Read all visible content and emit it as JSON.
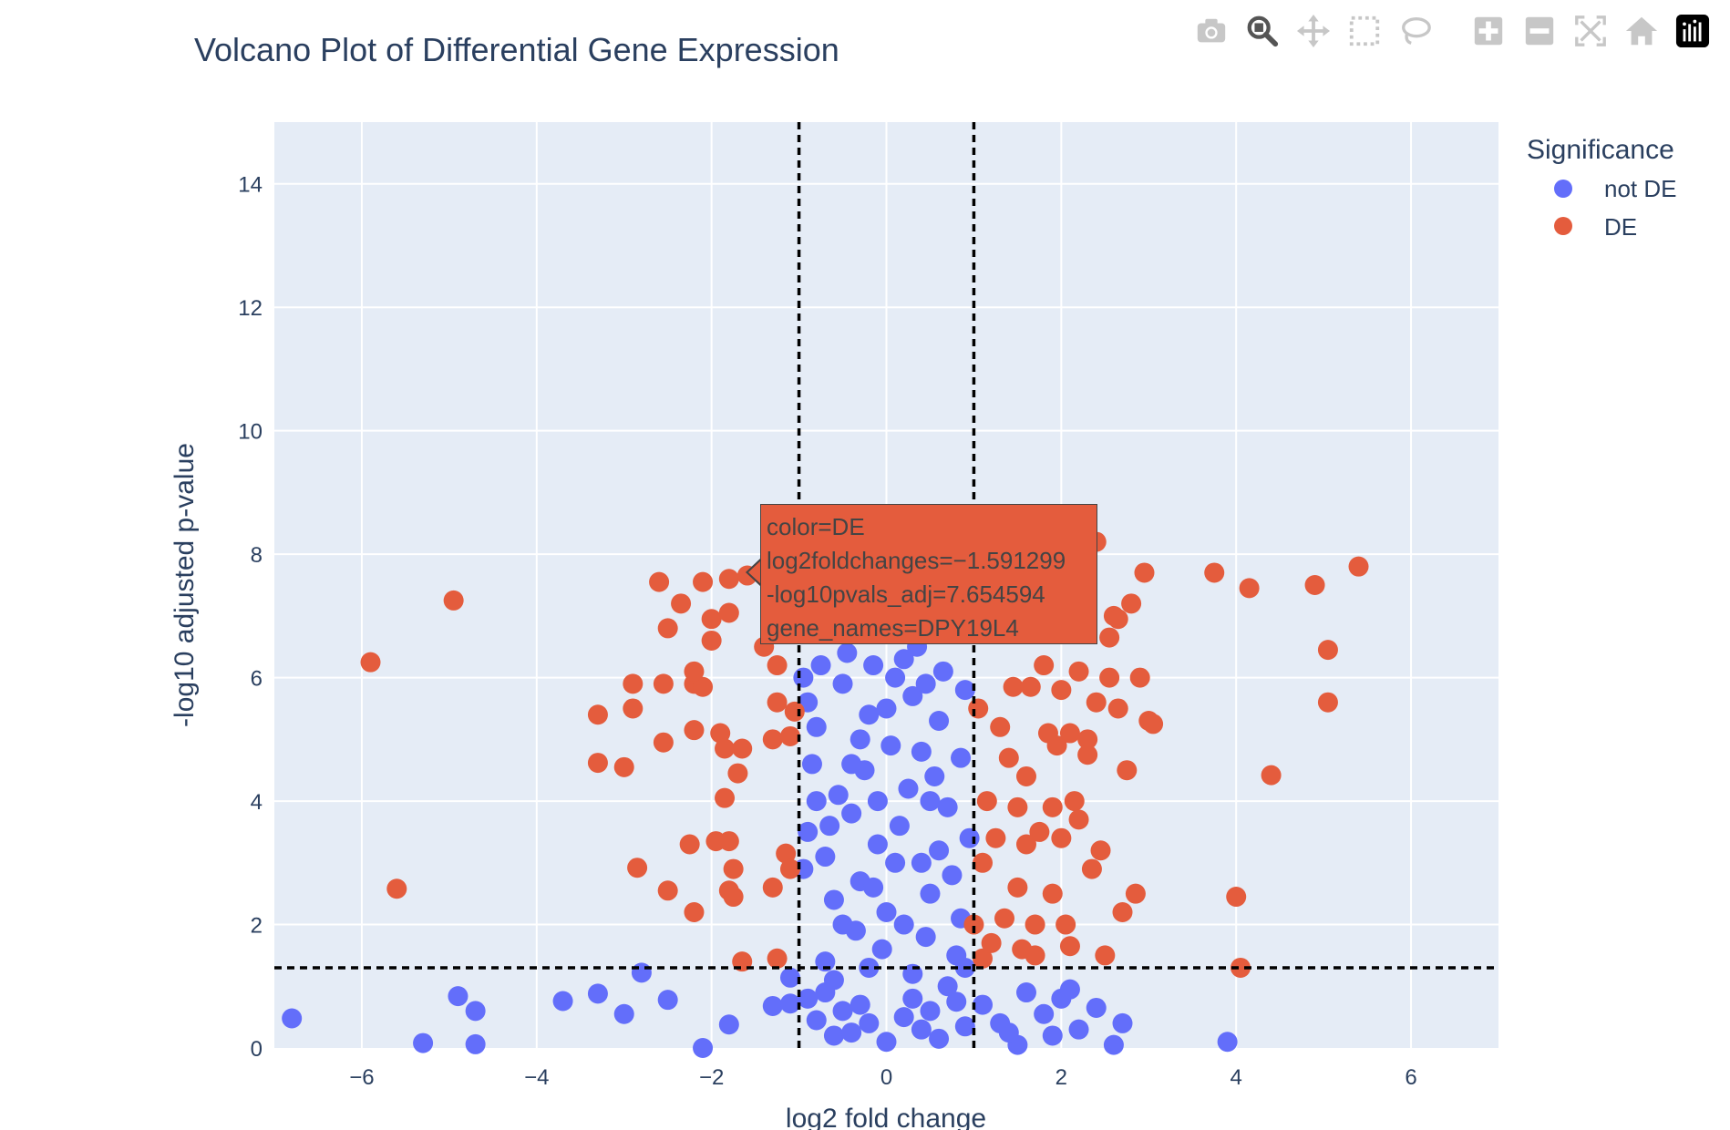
{
  "modebar": {
    "icons": [
      "camera-icon",
      "zoom-icon",
      "pan-icon",
      "box-select-icon",
      "lasso-select-icon",
      "zoom-in-icon",
      "zoom-out-icon",
      "autoscale-icon",
      "reset-axes-icon",
      "plotly-logo-icon"
    ]
  },
  "tooltip": {
    "line1": "color=DE",
    "line2": "log2foldchanges=−1.591299",
    "line3": "-log10pvals_adj=7.654594",
    "line4": "gene_names=DPY19L4"
  },
  "colors": {
    "not_de": "#636efa",
    "de": "#e45c3d",
    "plot_bg": "#e5ecf6",
    "grid": "#ffffff"
  },
  "chart_data": {
    "type": "scatter",
    "title": "Volcano Plot of Differential Gene Expression",
    "xlabel": "log2 fold change",
    "ylabel": "-log10 adjusted p-value",
    "xlim": [
      -7,
      7
    ],
    "ylim": [
      0,
      15
    ],
    "x_ticks": [
      -6,
      -4,
      -2,
      0,
      2,
      4,
      6
    ],
    "x_tick_labels": [
      "−6",
      "−4",
      "−2",
      "0",
      "2",
      "4",
      "6"
    ],
    "y_ticks": [
      0,
      2,
      4,
      6,
      8,
      10,
      12,
      14
    ],
    "y_tick_labels": [
      "0",
      "2",
      "4",
      "6",
      "8",
      "10",
      "12",
      "14"
    ],
    "grid": true,
    "legend": {
      "title": "Significance",
      "placement": "top-right"
    },
    "threshold_lines": {
      "x": [
        -1,
        1
      ],
      "y": 1.3
    },
    "series": [
      {
        "name": "not DE",
        "color": "#636efa",
        "points": [
          [
            -6.8,
            0.48
          ],
          [
            -5.3,
            0.08
          ],
          [
            -4.9,
            0.84
          ],
          [
            -4.7,
            0.6
          ],
          [
            -4.7,
            0.06
          ],
          [
            -3.7,
            0.76
          ],
          [
            -3.3,
            0.88
          ],
          [
            -3.0,
            0.55
          ],
          [
            -2.8,
            1.22
          ],
          [
            -2.5,
            0.78
          ],
          [
            -2.1,
            0.0
          ],
          [
            -1.8,
            0.38
          ],
          [
            -1.3,
            0.68
          ],
          [
            -1.1,
            1.14
          ],
          [
            -1.1,
            0.72
          ],
          [
            -0.9,
            0.8
          ],
          [
            -0.8,
            0.45
          ],
          [
            -0.7,
            0.9
          ],
          [
            -0.6,
            0.2
          ],
          [
            -0.5,
            0.6
          ],
          [
            -0.4,
            0.25
          ],
          [
            -0.3,
            0.7
          ],
          [
            -0.2,
            0.4
          ],
          [
            0.0,
            0.1
          ],
          [
            0.2,
            0.5
          ],
          [
            0.3,
            0.8
          ],
          [
            0.4,
            0.3
          ],
          [
            0.5,
            0.6
          ],
          [
            0.6,
            0.15
          ],
          [
            0.8,
            0.75
          ],
          [
            0.9,
            0.35
          ],
          [
            1.1,
            0.7
          ],
          [
            1.3,
            0.4
          ],
          [
            1.5,
            0.05
          ],
          [
            1.6,
            0.9
          ],
          [
            1.8,
            0.55
          ],
          [
            2.0,
            0.8
          ],
          [
            2.2,
            0.3
          ],
          [
            2.4,
            0.65
          ],
          [
            2.6,
            0.05
          ],
          [
            2.7,
            0.4
          ],
          [
            3.9,
            0.1
          ],
          [
            1.4,
            0.25
          ],
          [
            1.9,
            0.2
          ],
          [
            2.1,
            0.95
          ],
          [
            -0.95,
            2.9
          ],
          [
            -0.9,
            3.5
          ],
          [
            -0.85,
            4.6
          ],
          [
            -0.9,
            5.6
          ],
          [
            -0.95,
            6.0
          ],
          [
            -0.8,
            5.2
          ],
          [
            -0.7,
            3.1
          ],
          [
            -0.6,
            2.4
          ],
          [
            -0.55,
            4.1
          ],
          [
            -0.5,
            5.9
          ],
          [
            -0.45,
            6.4
          ],
          [
            -0.4,
            3.8
          ],
          [
            -0.35,
            1.9
          ],
          [
            -0.3,
            2.7
          ],
          [
            -0.25,
            4.5
          ],
          [
            -0.2,
            5.4
          ],
          [
            -0.15,
            6.2
          ],
          [
            -0.1,
            3.3
          ],
          [
            -0.05,
            1.6
          ],
          [
            0.0,
            2.2
          ],
          [
            0.05,
            4.9
          ],
          [
            0.1,
            6.0
          ],
          [
            0.15,
            3.6
          ],
          [
            0.2,
            2.0
          ],
          [
            0.25,
            4.2
          ],
          [
            0.3,
            5.7
          ],
          [
            0.35,
            6.5
          ],
          [
            0.4,
            3.0
          ],
          [
            0.45,
            1.8
          ],
          [
            0.5,
            2.5
          ],
          [
            0.55,
            4.4
          ],
          [
            0.6,
            5.3
          ],
          [
            0.65,
            6.1
          ],
          [
            0.7,
            3.9
          ],
          [
            0.75,
            2.8
          ],
          [
            0.8,
            1.5
          ],
          [
            0.85,
            4.7
          ],
          [
            0.9,
            5.8
          ],
          [
            0.95,
            3.4
          ],
          [
            -0.7,
            1.4
          ],
          [
            -0.6,
            1.1
          ],
          [
            -0.2,
            1.3
          ],
          [
            0.3,
            1.2
          ],
          [
            0.7,
            1.0
          ],
          [
            0.9,
            1.3
          ],
          [
            -0.8,
            4.0
          ],
          [
            -0.5,
            2.0
          ],
          [
            -0.1,
            4.0
          ],
          [
            0.4,
            4.8
          ],
          [
            0.6,
            3.2
          ],
          [
            -0.3,
            5.0
          ],
          [
            0.1,
            3.0
          ],
          [
            0.2,
            6.3
          ],
          [
            -0.65,
            3.6
          ],
          [
            0.5,
            4.0
          ],
          [
            -0.4,
            4.6
          ],
          [
            0.85,
            2.1
          ],
          [
            -0.15,
            2.6
          ],
          [
            0.0,
            5.5
          ],
          [
            0.45,
            5.9
          ],
          [
            -0.75,
            6.2
          ]
        ]
      },
      {
        "name": "DE",
        "color": "#e45c3d",
        "points": [
          [
            -5.9,
            6.25
          ],
          [
            -5.6,
            2.58
          ],
          [
            -4.95,
            7.25
          ],
          [
            -3.3,
            5.4
          ],
          [
            -3.3,
            4.62
          ],
          [
            -3.0,
            4.55
          ],
          [
            -2.9,
            5.9
          ],
          [
            -2.9,
            5.5
          ],
          [
            -2.85,
            2.92
          ],
          [
            -2.6,
            7.55
          ],
          [
            -2.55,
            5.9
          ],
          [
            -2.5,
            6.8
          ],
          [
            -2.55,
            4.95
          ],
          [
            -2.5,
            2.55
          ],
          [
            -2.25,
            3.3
          ],
          [
            -2.2,
            2.2
          ],
          [
            -2.2,
            5.9
          ],
          [
            -2.2,
            5.15
          ],
          [
            -2.1,
            7.55
          ],
          [
            -2.1,
            5.85
          ],
          [
            -2.0,
            6.95
          ],
          [
            -2.0,
            6.6
          ],
          [
            -1.95,
            3.35
          ],
          [
            -1.9,
            5.1
          ],
          [
            -1.85,
            4.85
          ],
          [
            -1.85,
            4.05
          ],
          [
            -1.8,
            7.6
          ],
          [
            -1.8,
            7.05
          ],
          [
            -1.8,
            3.35
          ],
          [
            -1.8,
            2.55
          ],
          [
            -1.75,
            2.9
          ],
          [
            -1.75,
            2.45
          ],
          [
            -1.7,
            4.45
          ],
          [
            -1.65,
            4.85
          ],
          [
            -1.65,
            1.4
          ],
          [
            -1.591299,
            7.654594
          ],
          [
            -1.3,
            5.0
          ],
          [
            -1.25,
            6.2
          ],
          [
            -1.25,
            5.6
          ],
          [
            -1.3,
            2.6
          ],
          [
            -1.25,
            1.45
          ],
          [
            -1.15,
            3.15
          ],
          [
            -1.1,
            5.05
          ],
          [
            -1.1,
            2.9
          ],
          [
            -1.05,
            5.45
          ],
          [
            -2.35,
            7.2
          ],
          [
            -2.2,
            6.1
          ],
          [
            -1.4,
            6.5
          ],
          [
            1.0,
            2.0
          ],
          [
            1.05,
            5.5
          ],
          [
            1.1,
            3.0
          ],
          [
            1.1,
            1.45
          ],
          [
            1.15,
            4.0
          ],
          [
            1.2,
            1.7
          ],
          [
            1.25,
            3.4
          ],
          [
            1.3,
            5.2
          ],
          [
            1.35,
            2.1
          ],
          [
            1.4,
            4.7
          ],
          [
            1.45,
            5.85
          ],
          [
            1.5,
            3.9
          ],
          [
            1.5,
            2.6
          ],
          [
            1.55,
            1.6
          ],
          [
            1.6,
            4.4
          ],
          [
            1.6,
            3.3
          ],
          [
            1.65,
            5.85
          ],
          [
            1.7,
            2.0
          ],
          [
            1.7,
            1.5
          ],
          [
            1.75,
            3.5
          ],
          [
            1.8,
            6.2
          ],
          [
            1.85,
            5.1
          ],
          [
            1.9,
            2.5
          ],
          [
            1.9,
            3.9
          ],
          [
            1.95,
            4.9
          ],
          [
            2.0,
            5.8
          ],
          [
            2.0,
            3.4
          ],
          [
            2.05,
            2.0
          ],
          [
            2.1,
            5.1
          ],
          [
            2.1,
            1.65
          ],
          [
            2.15,
            4.0
          ],
          [
            2.2,
            6.1
          ],
          [
            2.2,
            3.7
          ],
          [
            2.3,
            5.0
          ],
          [
            2.35,
            2.9
          ],
          [
            2.4,
            5.6
          ],
          [
            2.45,
            3.2
          ],
          [
            2.5,
            1.5
          ],
          [
            2.55,
            6.0
          ],
          [
            2.6,
            7.0
          ],
          [
            2.65,
            5.5
          ],
          [
            2.7,
            2.2
          ],
          [
            2.75,
            4.5
          ],
          [
            2.8,
            7.2
          ],
          [
            2.85,
            2.5
          ],
          [
            2.9,
            6.0
          ],
          [
            2.95,
            7.7
          ],
          [
            3.0,
            5.3
          ],
          [
            3.05,
            5.25
          ],
          [
            3.75,
            7.7
          ],
          [
            4.0,
            2.45
          ],
          [
            4.05,
            1.3
          ],
          [
            4.15,
            7.45
          ],
          [
            4.4,
            4.42
          ],
          [
            4.9,
            7.5
          ],
          [
            5.05,
            6.45
          ],
          [
            5.05,
            5.6
          ],
          [
            5.4,
            7.8
          ],
          [
            2.4,
            8.2
          ],
          [
            2.55,
            6.65
          ],
          [
            2.3,
            4.75
          ],
          [
            2.65,
            6.95
          ]
        ]
      }
    ]
  }
}
